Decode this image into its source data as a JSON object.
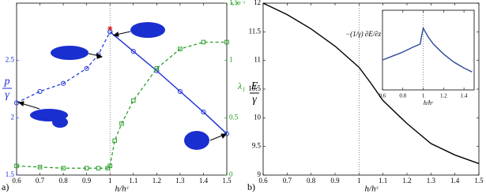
{
  "chart_data": [
    {
      "type": "line",
      "panel_label": "a)",
      "xlabel": "h/hᶜ",
      "ylabel": {
        "numerator": "p",
        "denominator": "γ"
      },
      "ylabel_color": "#1a2fd8",
      "y2label": "λ₁",
      "y2label_color": "#1a9a1a",
      "y2_multiplier": "x 10⁻³",
      "xlim": [
        0.6,
        1.5
      ],
      "xticks": [
        0.6,
        0.7,
        0.8,
        0.9,
        1,
        1.1,
        1.2,
        1.3,
        1.4,
        1.5
      ],
      "ylim": [
        1.5,
        3
      ],
      "yticks": [
        1.5,
        2,
        2.5
      ],
      "ytick_color": "#1a2fd8",
      "y2lim": [
        0,
        1.5
      ],
      "y2ticks": [
        0,
        0.5,
        1,
        1.5
      ],
      "y2tick_color": "#1a9a1a",
      "vline": 1,
      "series": [
        {
          "color": "#1a2fd8",
          "dashed": true,
          "marker": "o",
          "x": [
            0.6,
            0.7,
            0.8,
            0.9,
            0.95,
            1.0
          ],
          "values": [
            2.13,
            2.23,
            2.3,
            2.43,
            2.55,
            2.75
          ]
        },
        {
          "color": "#1a2fd8",
          "dashed": false,
          "marker": "o",
          "x": [
            1.0,
            1.1,
            1.2,
            1.3,
            1.4,
            1.5
          ],
          "values": [
            2.75,
            2.58,
            2.41,
            2.23,
            2.05,
            1.86
          ]
        },
        {
          "color": "#1a9a1a",
          "dashed": true,
          "marker": "s",
          "axis": "y2",
          "x": [
            0.6,
            0.7,
            0.8,
            0.9,
            0.95,
            0.99,
            1.0,
            1.02,
            1.05,
            1.1,
            1.2,
            1.3,
            1.4,
            1.5
          ],
          "values": [
            0.08,
            0.07,
            0.06,
            0.06,
            0.06,
            0.06,
            0.08,
            0.3,
            0.45,
            0.65,
            0.93,
            1.1,
            1.16,
            1.16
          ]
        },
        {
          "color": "#e02020",
          "line": false,
          "marker": "*",
          "x": [
            1.0
          ],
          "values": [
            2.78
          ]
        }
      ]
    },
    {
      "type": "line",
      "panel_label": "b)",
      "xlabel": "h/hᶜ",
      "ylabel": {
        "numerator": "E",
        "denominator": "γ"
      },
      "ylabel_color": "#000000",
      "xlim": [
        0.6,
        1.5
      ],
      "xticks": [
        0.6,
        0.7,
        0.8,
        0.9,
        1,
        1.1,
        1.2,
        1.3,
        1.4,
        1.5
      ],
      "ylim": [
        9,
        12
      ],
      "yticks": [
        9,
        9.5,
        10,
        10.5,
        11,
        11.5,
        12
      ],
      "vline": 1,
      "series": [
        {
          "color": "#000000",
          "dashed": false,
          "x": [
            0.6,
            0.7,
            0.8,
            0.9,
            1.0,
            1.05,
            1.1,
            1.2,
            1.3,
            1.4,
            1.5
          ],
          "values": [
            12.0,
            11.8,
            11.55,
            11.25,
            10.88,
            10.6,
            10.3,
            9.9,
            9.55,
            9.35,
            9.2
          ]
        }
      ]
    },
    {
      "type": "line",
      "xlabel": "h/hᶜ",
      "annotation": "−(1/γ) ∂E/∂z",
      "xlim": [
        0.6,
        1.5
      ],
      "xticks": [
        0.6,
        0.8,
        1,
        1.2,
        1.4
      ],
      "ylim": [
        0,
        8
      ],
      "vline": 1,
      "series": [
        {
          "color": "#2b4a9a",
          "dashed": false,
          "x": [
            0.6,
            0.7,
            0.8,
            0.9,
            0.97,
            0.98,
            1.0,
            1.05,
            1.1,
            1.2,
            1.3,
            1.4,
            1.48
          ],
          "values": [
            3.0,
            3.4,
            3.8,
            4.3,
            4.6,
            5.2,
            6.2,
            5.3,
            4.6,
            3.6,
            2.8,
            2.2,
            1.8
          ]
        }
      ]
    }
  ]
}
